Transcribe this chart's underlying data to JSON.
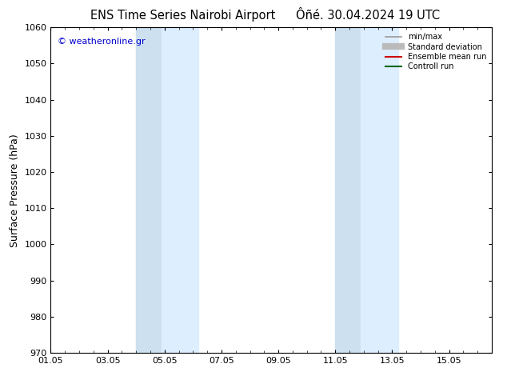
{
  "title_left": "ENS Time Series Nairobi Airport",
  "title_right": "Ôñé. 30.04.2024 19 UTC",
  "ylabel": "Surface Pressure (hPa)",
  "ylim": [
    970,
    1060
  ],
  "yticks": [
    970,
    980,
    990,
    1000,
    1010,
    1020,
    1030,
    1040,
    1050,
    1060
  ],
  "xlim": [
    0,
    15.5
  ],
  "xtick_labels": [
    "01.05",
    "03.05",
    "05.05",
    "07.05",
    "09.05",
    "11.05",
    "13.05",
    "15.05"
  ],
  "xtick_positions": [
    0,
    2,
    4,
    6,
    8,
    10,
    12,
    14
  ],
  "shaded_regions": [
    {
      "x_start": 3.0,
      "x_end": 3.9
    },
    {
      "x_start": 3.9,
      "x_end": 5.2
    },
    {
      "x_start": 10.0,
      "x_end": 10.9
    },
    {
      "x_start": 10.9,
      "x_end": 12.2
    }
  ],
  "shaded_colors": [
    "#cce0f0",
    "#ddeeff",
    "#cce0f0",
    "#ddeeff"
  ],
  "watermark_text": "© weatheronline.gr",
  "watermark_color": "#0000cc",
  "legend_items": [
    {
      "label": "min/max",
      "color": "#999999",
      "lw": 1.2
    },
    {
      "label": "Standard deviation",
      "color": "#bbbbbb",
      "lw": 6
    },
    {
      "label": "Ensemble mean run",
      "color": "#cc0000",
      "lw": 1.5
    },
    {
      "label": "Controll run",
      "color": "#006600",
      "lw": 1.5
    }
  ],
  "bg_color": "#ffffff",
  "spine_color": "#000000",
  "title_fontsize": 10.5,
  "tick_fontsize": 8,
  "ylabel_fontsize": 9,
  "watermark_fontsize": 8
}
